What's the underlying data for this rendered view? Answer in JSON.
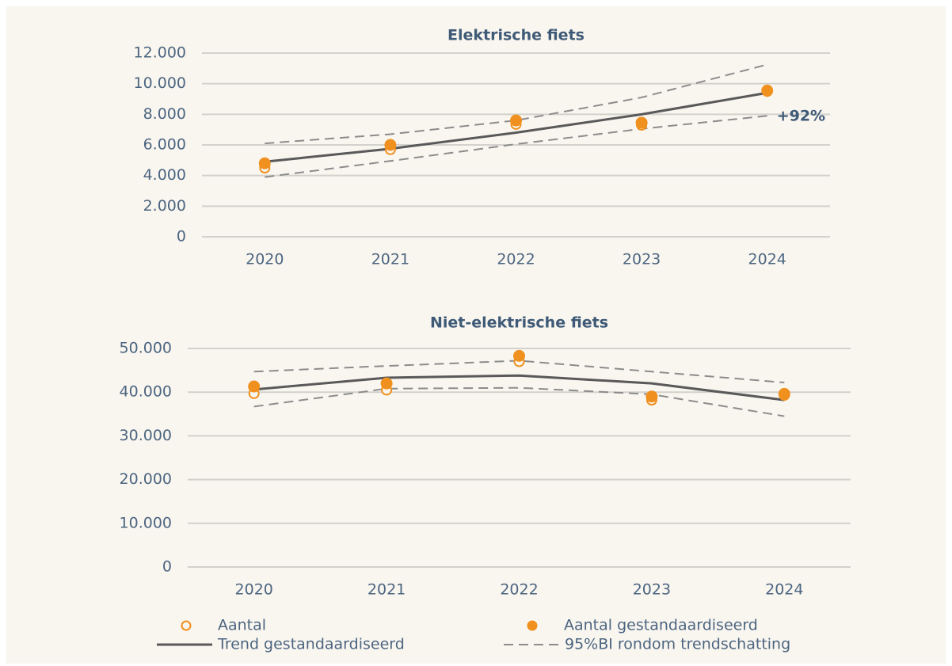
{
  "chart_data": [
    {
      "type": "line",
      "title": "Elektrische fiets",
      "categories": [
        "2020",
        "2021",
        "2022",
        "2023",
        "2024"
      ],
      "ylim": [
        0,
        12000
      ],
      "yticks": [
        0,
        {
          "value": 2000,
          "label": "2.000"
        },
        {
          "value": 4000,
          "label": "4.000"
        },
        {
          "value": 6000,
          "label": "6.000"
        },
        {
          "value": 8000,
          "label": "8.000"
        },
        {
          "value": 10000,
          "label": "10.000"
        },
        {
          "value": 12000,
          "label": "12.000"
        }
      ],
      "grid": true,
      "annotation": "+92%",
      "series": [
        {
          "name": "Aantal",
          "color": "#f0901e",
          "style": "open",
          "values": [
            4500,
            5700,
            7350,
            7300,
            9500
          ]
        },
        {
          "name": "Aantal gestandaardiseerd",
          "color": "#f0901e",
          "style": "filled",
          "values": [
            4800,
            6000,
            7600,
            7450,
            9550
          ]
        },
        {
          "name": "Trend gestandaardiseerd",
          "color": "#595959",
          "style": "solid",
          "values": [
            4900,
            5750,
            6800,
            8000,
            9400
          ]
        },
        {
          "name": "95%BI rondom trendschatting",
          "color": "#8c8c8c",
          "style": "dashed",
          "upper": [
            6100,
            6700,
            7600,
            9100,
            11250
          ],
          "lower": [
            3900,
            4950,
            6050,
            7050,
            7900
          ]
        }
      ]
    },
    {
      "type": "line",
      "title": "Niet-elektrische fiets",
      "categories": [
        "2020",
        "2021",
        "2022",
        "2023",
        "2024"
      ],
      "ylim": [
        0,
        50000
      ],
      "yticks": [
        0,
        {
          "value": 10000,
          "label": "10.000"
        },
        {
          "value": 20000,
          "label": "20.000"
        },
        {
          "value": 30000,
          "label": "30.000"
        },
        {
          "value": 40000,
          "label": "40.000"
        },
        {
          "value": 50000,
          "label": "50.000"
        }
      ],
      "grid": true,
      "series": [
        {
          "color": "#f0901e",
          "style": "open",
          "values": [
            39700,
            40500,
            47000,
            38200,
            39300
          ]
        },
        {
          "color": "#f0901e",
          "style": "filled",
          "values": [
            41300,
            42000,
            48300,
            39000,
            39600
          ]
        },
        {
          "color": "#595959",
          "style": "solid",
          "values": [
            40600,
            43300,
            43800,
            42000,
            38200
          ]
        },
        {
          "color": "#8c8c8c",
          "style": "dashed",
          "upper": [
            44700,
            46000,
            47200,
            44700,
            42200
          ],
          "lower": [
            36700,
            40800,
            41000,
            39500,
            34500
          ]
        }
      ]
    }
  ]
}
